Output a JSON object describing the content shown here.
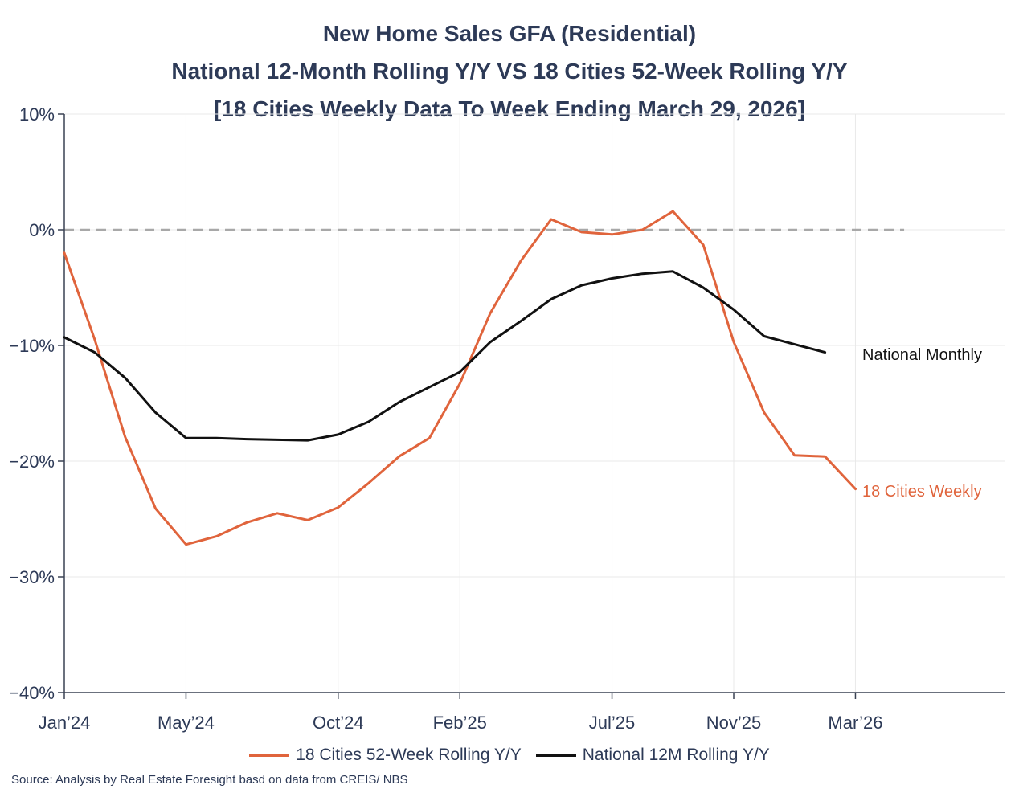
{
  "chart_data": {
    "type": "line",
    "title_lines": [
      "New Home Sales GFA (Residential)",
      "National 12-Month Rolling Y/Y VS 18 Cities 52-Week Rolling Y/Y",
      "[18 Cities Weekly Data To Week Ending March 29, 2026]"
    ],
    "ylim": [
      -40,
      10
    ],
    "yticks": [
      10,
      0,
      -10,
      -20,
      -30,
      -40
    ],
    "ytick_labels": [
      "10%",
      "0%",
      "−10%",
      "−20%",
      "−30%",
      "−40%"
    ],
    "xlim": [
      0,
      30.9
    ],
    "xticks": [
      0,
      4,
      9,
      13,
      18,
      22,
      26
    ],
    "xtick_labels": [
      "Jan’24",
      "May’24",
      "Oct’24",
      "Feb’25",
      "Jul’25",
      "Nov’25",
      "Mar’26"
    ],
    "reference_line": {
      "y": 0,
      "style": "dashed"
    },
    "series": [
      {
        "name": "18 Cities 52-Week Rolling Y/Y",
        "end_label": "18 Cities Weekly",
        "color": "#e0643c",
        "x": [
          0,
          1,
          2,
          3,
          4,
          5,
          6,
          7,
          8,
          9,
          10,
          11,
          12,
          13,
          14,
          15,
          16,
          17,
          18,
          19,
          20,
          21,
          22,
          23,
          24,
          25,
          26
        ],
        "y": [
          -2.0,
          -9.5,
          -17.9,
          -24.1,
          -27.2,
          -26.5,
          -25.3,
          -24.5,
          -25.1,
          -24.0,
          -21.9,
          -19.6,
          -18.0,
          -13.3,
          -7.2,
          -2.7,
          0.9,
          -0.2,
          -0.4,
          0.0,
          1.6,
          -1.3,
          -9.7,
          -15.8,
          -19.5,
          -19.6,
          -22.4
        ]
      },
      {
        "name": "National 12M Rolling Y/Y",
        "end_label": "National Monthly",
        "color": "#111111",
        "x": [
          0,
          1,
          2,
          3,
          4,
          5,
          6,
          7,
          8,
          9,
          10,
          11,
          12,
          13,
          14,
          15,
          16,
          17,
          18,
          19,
          20,
          21,
          22,
          23,
          24,
          25
        ],
        "y": [
          -9.3,
          -10.6,
          -12.8,
          -15.8,
          -18.0,
          -18.0,
          -18.1,
          -18.15,
          -18.2,
          -17.7,
          -16.6,
          -14.9,
          -13.6,
          -12.3,
          -9.7,
          -7.9,
          -6.0,
          -4.8,
          -4.2,
          -3.8,
          -3.6,
          -5.0,
          -6.9,
          -9.2,
          -9.9,
          -10.6
        ]
      }
    ]
  },
  "legend": {
    "items": [
      {
        "label": "18 Cities 52-Week Rolling Y/Y",
        "color": "#e0643c"
      },
      {
        "label": "National 12M Rolling Y/Y",
        "color": "#111111"
      }
    ]
  },
  "source": "Source: Analysis by Real Estate Foresight basd on data from CREIS/ NBS"
}
